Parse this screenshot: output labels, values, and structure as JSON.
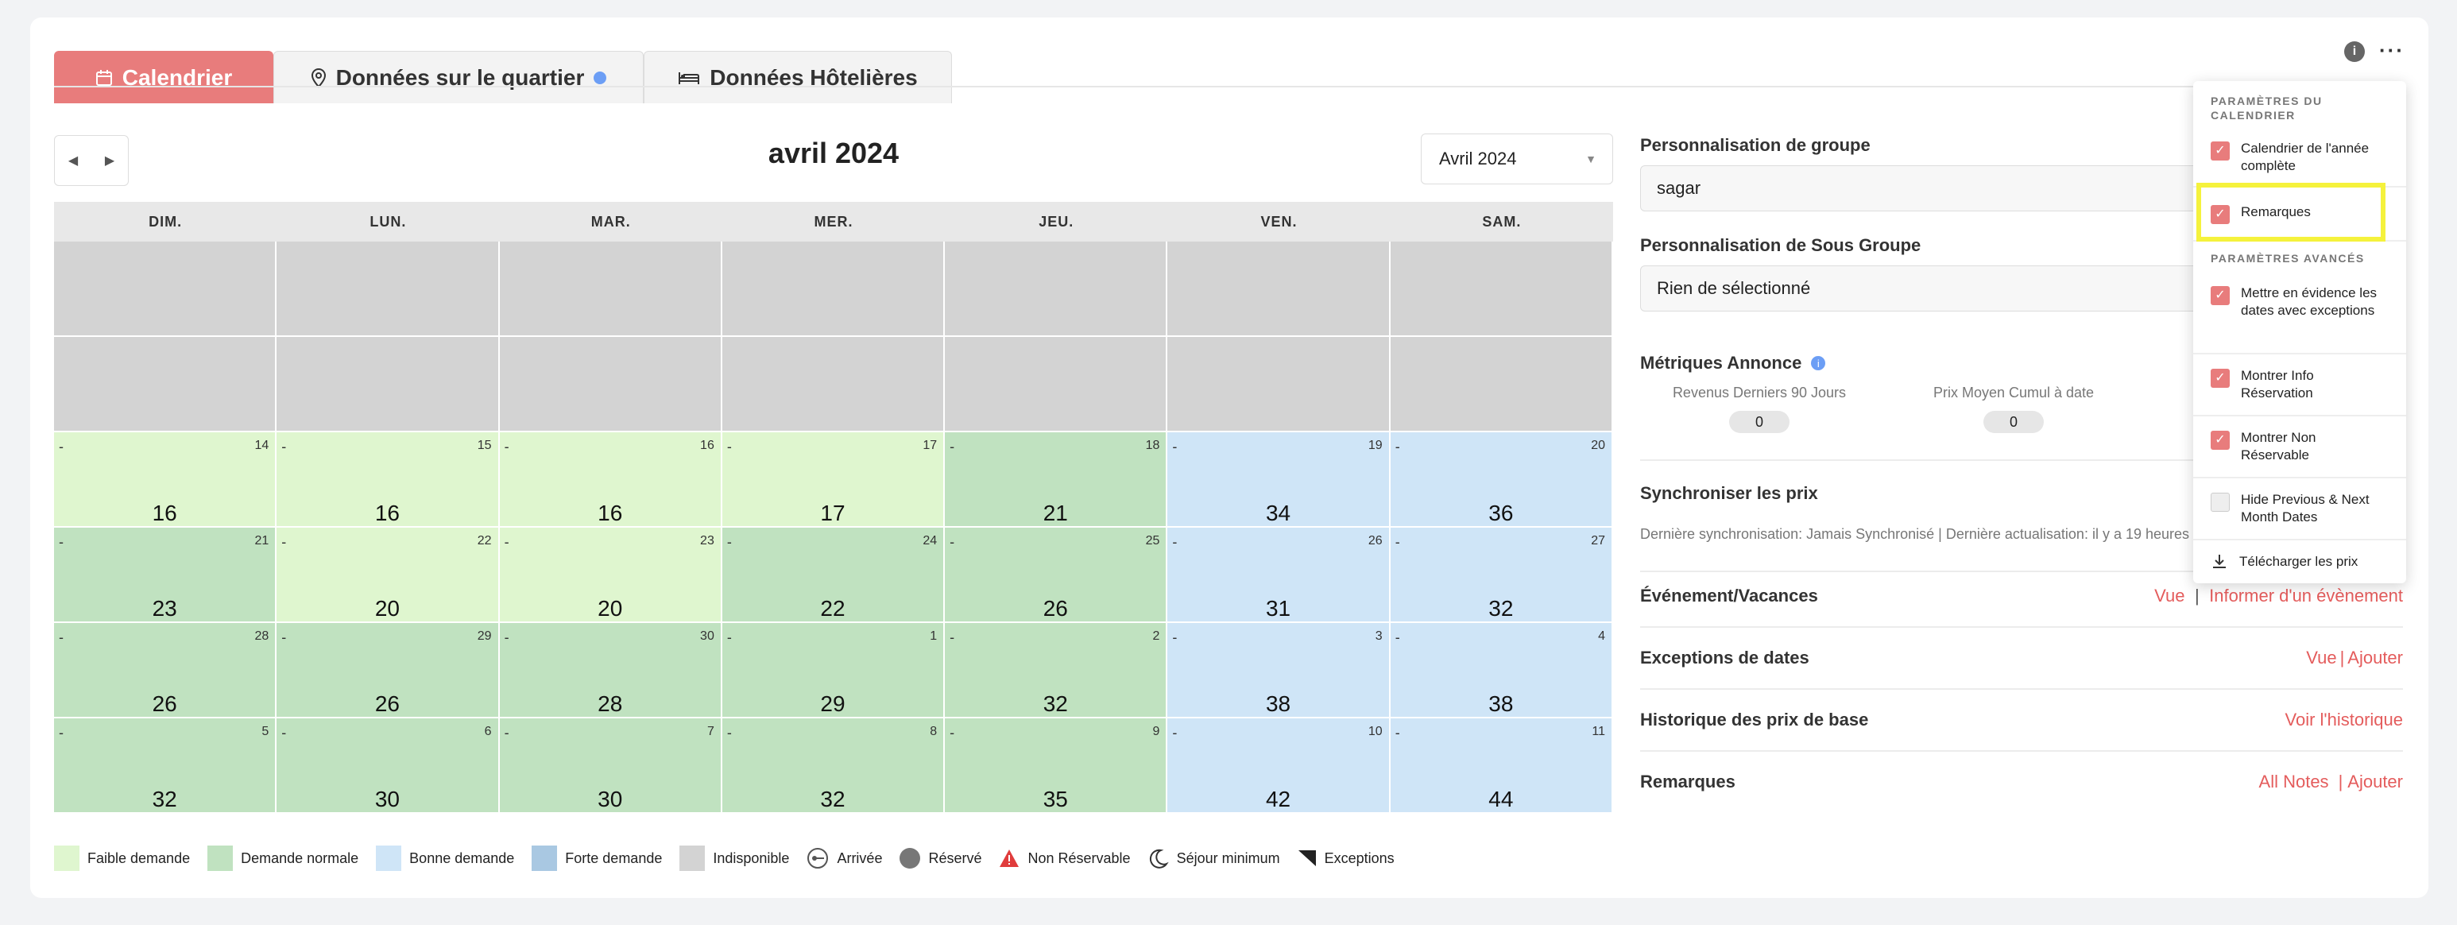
{
  "tabs": [
    {
      "label": "Calendrier",
      "icon": "calendar-icon"
    },
    {
      "label": "Données sur le quartier",
      "icon": "map-pin-icon"
    },
    {
      "label": "Données Hôtelières",
      "icon": "bed-icon"
    }
  ],
  "calendar": {
    "title": "avril 2024",
    "month_select": "Avril 2024",
    "weekdays": [
      "DIM.",
      "LUN.",
      "MAR.",
      "MER.",
      "JEU.",
      "VEN.",
      "SAM."
    ],
    "rows": [
      [
        {
          "t": "off"
        },
        {
          "t": "off"
        },
        {
          "t": "off"
        },
        {
          "t": "off"
        },
        {
          "t": "off"
        },
        {
          "t": "off"
        },
        {
          "t": "off"
        }
      ],
      [
        {
          "t": "off"
        },
        {
          "t": "off"
        },
        {
          "t": "off"
        },
        {
          "t": "off"
        },
        {
          "t": "off"
        },
        {
          "t": "off"
        },
        {
          "t": "off"
        }
      ],
      [
        {
          "t": "low",
          "d": "14",
          "p": "16"
        },
        {
          "t": "low",
          "d": "15",
          "p": "16"
        },
        {
          "t": "low",
          "d": "16",
          "p": "16"
        },
        {
          "t": "low",
          "d": "17",
          "p": "17"
        },
        {
          "t": "norm",
          "d": "18",
          "p": "21"
        },
        {
          "t": "good",
          "d": "19",
          "p": "34"
        },
        {
          "t": "good",
          "d": "20",
          "p": "36"
        }
      ],
      [
        {
          "t": "norm",
          "d": "21",
          "p": "23"
        },
        {
          "t": "low",
          "d": "22",
          "p": "20"
        },
        {
          "t": "low",
          "d": "23",
          "p": "20"
        },
        {
          "t": "norm",
          "d": "24",
          "p": "22"
        },
        {
          "t": "norm",
          "d": "25",
          "p": "26"
        },
        {
          "t": "good",
          "d": "26",
          "p": "31"
        },
        {
          "t": "good",
          "d": "27",
          "p": "32"
        }
      ],
      [
        {
          "t": "norm",
          "d": "28",
          "p": "26"
        },
        {
          "t": "norm",
          "d": "29",
          "p": "26"
        },
        {
          "t": "norm",
          "d": "30",
          "p": "28"
        },
        {
          "t": "norm",
          "d": "1",
          "p": "29"
        },
        {
          "t": "norm",
          "d": "2",
          "p": "32"
        },
        {
          "t": "good",
          "d": "3",
          "p": "38"
        },
        {
          "t": "good",
          "d": "4",
          "p": "38"
        }
      ],
      [
        {
          "t": "norm",
          "d": "5",
          "p": "32"
        },
        {
          "t": "norm",
          "d": "6",
          "p": "30"
        },
        {
          "t": "norm",
          "d": "7",
          "p": "30"
        },
        {
          "t": "norm",
          "d": "8",
          "p": "32"
        },
        {
          "t": "norm",
          "d": "9",
          "p": "35"
        },
        {
          "t": "good",
          "d": "10",
          "p": "42"
        },
        {
          "t": "good",
          "d": "11",
          "p": "44"
        }
      ]
    ],
    "cell_mark": "-"
  },
  "legend": [
    {
      "label": "Faible demande",
      "color": "#dff6cf"
    },
    {
      "label": "Demande normale",
      "color": "#c0e2c0"
    },
    {
      "label": "Bonne demande",
      "color": "#cfe5f7"
    },
    {
      "label": "Forte demande",
      "color": "#a9c8e2"
    },
    {
      "label": "Indisponible",
      "color": "#d3d3d3"
    },
    {
      "label": "Arrivée",
      "icon": "key-icon"
    },
    {
      "label": "Réservé",
      "icon": "dot-icon"
    },
    {
      "label": "Non Réservable",
      "icon": "warning-icon"
    },
    {
      "label": "Séjour minimum",
      "icon": "moon-icon"
    },
    {
      "label": "Exceptions",
      "icon": "corner-flag-icon"
    }
  ],
  "panel": {
    "group_label": "Personnalisation de groupe",
    "group_value": "sagar",
    "subgroup_label": "Personnalisation de Sous Groupe",
    "subgroup_value": "Rien de sélectionné",
    "metrics_label": "Métriques Annonce",
    "metric1_label": "Revenus Derniers 90 Jours",
    "metric1_value": "0",
    "metric2_label": "Prix Moyen Cumul à date",
    "metric2_value": "0",
    "sync_label": "Synchroniser les prix",
    "sync_info": "Dernière synchronisation: Jamais Synchronisé | Dernière actualisation: il y a 19 heures",
    "events_label": "Événement/Vacances",
    "events_view": "Vue",
    "events_inform": "Informer d'un évènement",
    "exceptions_label": "Exceptions de dates",
    "exceptions_view": "Vue",
    "exceptions_add": "Ajouter",
    "history_label": "Historique des prix de base",
    "history_link": "Voir l'historique",
    "notes_label": "Remarques",
    "notes_all": "All Notes",
    "notes_add": "Ajouter",
    "pipe": "|"
  },
  "dropdown": {
    "section1": "PARAMÈTRES DU CALENDRIER",
    "section2": "PARAMÈTRES AVANCÉS",
    "items": [
      {
        "label": "Calendrier de l'année complète",
        "checked": true
      },
      {
        "label": "Remarques",
        "checked": true
      },
      {
        "label": "Mettre en évidence les dates avec exceptions",
        "checked": true
      },
      {
        "label": "Montrer Info Réservation",
        "checked": true
      },
      {
        "label": "Montrer Non Réservable",
        "checked": true
      },
      {
        "label": "Hide Previous & Next Month Dates",
        "checked": false
      }
    ],
    "download": "Télécharger les prix"
  },
  "colors": {
    "accent": "#e87c7c",
    "link": "#e45c5c",
    "highlight": "#f5f23c"
  }
}
